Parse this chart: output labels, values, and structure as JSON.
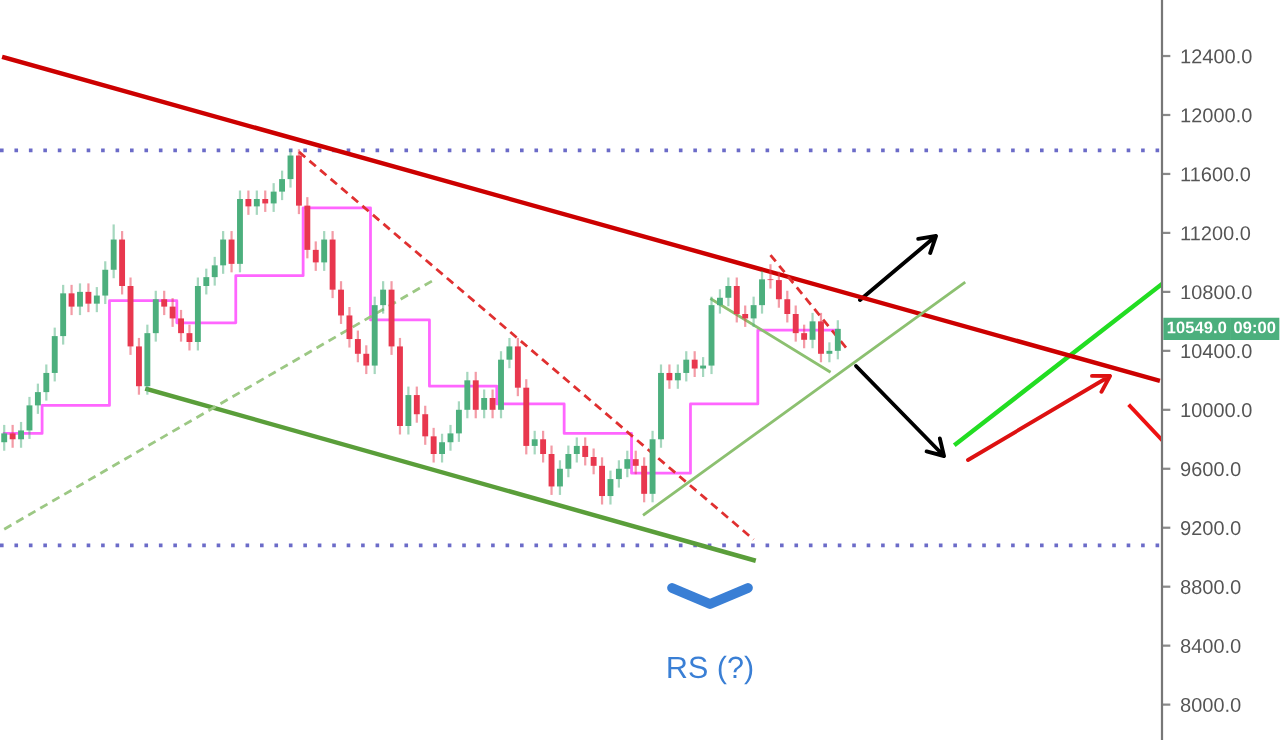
{
  "chart_data": {
    "type": "candlestick",
    "categories": [
      null,
      null,
      null,
      null,
      null,
      null,
      null,
      null,
      null,
      null,
      null,
      null,
      null,
      null,
      null,
      null,
      null,
      null,
      null,
      null,
      null,
      null,
      null,
      null,
      null,
      null,
      null,
      null,
      null,
      null,
      null,
      null,
      null,
      null,
      null,
      null,
      null,
      null,
      null,
      null,
      null,
      null,
      null,
      null,
      null,
      null,
      null,
      null,
      null,
      null,
      null,
      null,
      null,
      null,
      null,
      null,
      null,
      null,
      null,
      null,
      null,
      null,
      null,
      null,
      null,
      null,
      null,
      null,
      null,
      null,
      null,
      null,
      null,
      null,
      null,
      null,
      null,
      null,
      null,
      null,
      null,
      null,
      null,
      null,
      null,
      null,
      null,
      null,
      null,
      null,
      null,
      null,
      null,
      null,
      null,
      null,
      null,
      null,
      null,
      null,
      null,
      null,
      null,
      null,
      null,
      null,
      null,
      null,
      null,
      null,
      null,
      null,
      null,
      null,
      null,
      null,
      null,
      null,
      null,
      null,
      null,
      null,
      null,
      null,
      null,
      null,
      null,
      null,
      null,
      null,
      null,
      null,
      null,
      null,
      null,
      null,
      null,
      null
    ],
    "ohlc": [
      [
        9780,
        9890,
        9730,
        9840
      ],
      [
        9840,
        9890,
        9750,
        9800
      ],
      [
        9800,
        9910,
        9750,
        9860
      ],
      [
        9860,
        10080,
        9810,
        10030
      ],
      [
        10030,
        10170,
        9980,
        10120
      ],
      [
        10120,
        10300,
        10070,
        10250
      ],
      [
        10250,
        10550,
        10200,
        10500
      ],
      [
        10500,
        10840,
        10450,
        10790
      ],
      [
        10790,
        10840,
        10650,
        10700
      ],
      [
        10700,
        10850,
        10650,
        10800
      ],
      [
        10800,
        10850,
        10670,
        10720
      ],
      [
        10720,
        10825,
        10670,
        10775
      ],
      [
        10775,
        11000,
        10725,
        10950
      ],
      [
        10950,
        11250,
        10900,
        11155
      ],
      [
        11155,
        11205,
        10790,
        10840
      ],
      [
        10840,
        10890,
        10380,
        10430
      ],
      [
        10430,
        10480,
        10110,
        10160
      ],
      [
        10160,
        10570,
        10110,
        10520
      ],
      [
        10520,
        10800,
        10470,
        10750
      ],
      [
        10750,
        10800,
        10650,
        10700
      ],
      [
        10700,
        10750,
        10570,
        10620
      ],
      [
        10620,
        10670,
        10470,
        10520
      ],
      [
        10520,
        10570,
        10410,
        10460
      ],
      [
        10460,
        10890,
        10410,
        10840
      ],
      [
        10840,
        10950,
        10790,
        10900
      ],
      [
        10900,
        11030,
        10850,
        10980
      ],
      [
        10980,
        11205,
        10930,
        11155
      ],
      [
        11155,
        11205,
        10940,
        10990
      ],
      [
        10990,
        11480,
        10940,
        11430
      ],
      [
        11430,
        11480,
        11330,
        11380
      ],
      [
        11380,
        11480,
        11330,
        11430
      ],
      [
        11430,
        11480,
        11350,
        11400
      ],
      [
        11400,
        11530,
        11350,
        11480
      ],
      [
        11480,
        11615,
        11430,
        11565
      ],
      [
        11565,
        11760,
        11515,
        11725
      ],
      [
        11725,
        11760,
        11335,
        11385
      ],
      [
        11385,
        11435,
        11035,
        11085
      ],
      [
        11085,
        11135,
        10950,
        11000
      ],
      [
        11000,
        11205,
        10950,
        11155
      ],
      [
        11155,
        11205,
        10765,
        10815
      ],
      [
        10815,
        10865,
        10590,
        10640
      ],
      [
        10640,
        10690,
        10430,
        10480
      ],
      [
        10480,
        10530,
        10330,
        10380
      ],
      [
        10380,
        10430,
        10250,
        10300
      ],
      [
        10300,
        10760,
        10250,
        10710
      ],
      [
        10710,
        10865,
        10660,
        10815
      ],
      [
        10815,
        10865,
        10380,
        10430
      ],
      [
        10430,
        10480,
        9840,
        9890
      ],
      [
        9890,
        10150,
        9840,
        10100
      ],
      [
        10100,
        10150,
        9920,
        9970
      ],
      [
        9970,
        10020,
        9770,
        9820
      ],
      [
        9820,
        9870,
        9650,
        9700
      ],
      [
        9700,
        9830,
        9650,
        9780
      ],
      [
        9780,
        9890,
        9730,
        9840
      ],
      [
        9840,
        10050,
        9790,
        10000
      ],
      [
        10000,
        10250,
        9950,
        10200
      ],
      [
        10200,
        10250,
        9950,
        10000
      ],
      [
        10000,
        10130,
        9950,
        10080
      ],
      [
        10080,
        10130,
        9950,
        10000
      ],
      [
        10000,
        10390,
        9950,
        10340
      ],
      [
        10340,
        10480,
        10290,
        10430
      ],
      [
        10430,
        10480,
        10100,
        10150
      ],
      [
        10150,
        10200,
        9705,
        9755
      ],
      [
        9755,
        9850,
        9705,
        9800
      ],
      [
        9800,
        9850,
        9650,
        9700
      ],
      [
        9700,
        9750,
        9430,
        9480
      ],
      [
        9480,
        9650,
        9430,
        9600
      ],
      [
        9600,
        9750,
        9550,
        9700
      ],
      [
        9700,
        9805,
        9650,
        9755
      ],
      [
        9755,
        9805,
        9630,
        9680
      ],
      [
        9680,
        9730,
        9570,
        9620
      ],
      [
        9620,
        9670,
        9365,
        9415
      ],
      [
        9415,
        9580,
        9365,
        9530
      ],
      [
        9530,
        9650,
        9480,
        9600
      ],
      [
        9600,
        9715,
        9550,
        9665
      ],
      [
        9665,
        9715,
        9570,
        9620
      ],
      [
        9620,
        9670,
        9380,
        9430
      ],
      [
        9430,
        9850,
        9380,
        9800
      ],
      [
        9800,
        10300,
        9750,
        10250
      ],
      [
        10250,
        10300,
        10150,
        10200
      ],
      [
        10200,
        10300,
        10150,
        10250
      ],
      [
        10250,
        10390,
        10200,
        10340
      ],
      [
        10340,
        10390,
        10230,
        10280
      ],
      [
        10280,
        10350,
        10230,
        10300
      ],
      [
        10300,
        10760,
        10250,
        10710
      ],
      [
        10710,
        10810,
        10660,
        10760
      ],
      [
        10760,
        10890,
        10710,
        10840
      ],
      [
        10840,
        10890,
        10600,
        10650
      ],
      [
        10650,
        10700,
        10570,
        10620
      ],
      [
        10620,
        10760,
        10570,
        10710
      ],
      [
        10710,
        10935,
        10660,
        10885
      ],
      [
        10885,
        10980,
        10830,
        10880
      ],
      [
        10880,
        10930,
        10700,
        10750
      ],
      [
        10750,
        10800,
        10600,
        10650
      ],
      [
        10650,
        10700,
        10470,
        10520
      ],
      [
        10520,
        10570,
        10425,
        10475
      ],
      [
        10475,
        10650,
        10425,
        10600
      ],
      [
        10600,
        10650,
        10330,
        10380
      ],
      [
        10380,
        10450,
        10330,
        10400
      ],
      [
        10400,
        10600,
        10350,
        10549
      ],
      null,
      null,
      null,
      null,
      null,
      null,
      null,
      null,
      null,
      null,
      null,
      null,
      null,
      null,
      null,
      null,
      null,
      null,
      null,
      null,
      null,
      null,
      null,
      null,
      null,
      null,
      null,
      null,
      null,
      null,
      null,
      null,
      null,
      null,
      null,
      null,
      null,
      null
    ],
    "series": [
      {
        "type": "step",
        "color": "#ff66ff",
        "values": [
          9840,
          9840,
          9840,
          9840,
          9840,
          10030,
          10030,
          10030,
          10030,
          10030,
          10030,
          10030,
          10030,
          10740,
          10740,
          10740,
          10740,
          10740,
          10740,
          10740,
          10740,
          10590,
          10590,
          10590,
          10590,
          10590,
          10590,
          10590,
          10910,
          10910,
          10910,
          10910,
          10910,
          10910,
          10910,
          10910,
          11370,
          11370,
          11370,
          11370,
          11370,
          11370,
          11370,
          11370,
          10610,
          10610,
          10610,
          10610,
          10610,
          10610,
          10610,
          10160,
          10160,
          10160,
          10160,
          10160,
          10160,
          10160,
          10160,
          10040,
          10040,
          10040,
          10040,
          10040,
          10040,
          10040,
          10040,
          9840,
          9840,
          9840,
          9840,
          9840,
          9840,
          9840,
          9840,
          9570,
          9570,
          9570,
          9570,
          9570,
          9570,
          9570,
          10040,
          10040,
          10040,
          10040,
          10040,
          10040,
          10040,
          10040,
          10540,
          10540,
          10540,
          10540,
          10540,
          10540,
          10540,
          10540,
          10540,
          10540,
          null,
          null,
          null,
          null,
          null,
          null,
          null,
          null,
          null,
          null,
          null,
          null,
          null,
          null,
          null,
          null,
          null,
          null,
          null,
          null,
          null,
          null,
          null,
          null,
          null,
          null,
          null,
          null,
          null,
          null,
          null,
          null,
          null,
          null,
          null,
          null,
          null,
          null
        ]
      },
      {
        "type": "line",
        "color": "#cc0000",
        "line_style": "solid",
        "values": [
          12390,
          null,
          null,
          null,
          null,
          null,
          null,
          null,
          null,
          null,
          null,
          null,
          null,
          null,
          null,
          null,
          null,
          null,
          null,
          null,
          null,
          null,
          null,
          null,
          null,
          null,
          null,
          null,
          null,
          null,
          null,
          null,
          null,
          null,
          null,
          null,
          null,
          null,
          null,
          null,
          null,
          null,
          null,
          null,
          null,
          null,
          null,
          null,
          null,
          null,
          null,
          null,
          null,
          null,
          null,
          null,
          null,
          null,
          null,
          null,
          null,
          null,
          null,
          null,
          null,
          null,
          null,
          null,
          null,
          null,
          null,
          null,
          null,
          null,
          null,
          null,
          null,
          null,
          null,
          null,
          null,
          null,
          null,
          null,
          null,
          null,
          null,
          null,
          null,
          null,
          null,
          null,
          null,
          null,
          null,
          null,
          null,
          null,
          null,
          null,
          null,
          null,
          null,
          null,
          null,
          null,
          null,
          null,
          null,
          null,
          null,
          null,
          null,
          null,
          null,
          null,
          null,
          null,
          null,
          null,
          null,
          null,
          null,
          null,
          null,
          null,
          null,
          null,
          null,
          null,
          null,
          null,
          null,
          null,
          null,
          null,
          null,
          10200
        ]
      },
      {
        "type": "line",
        "color": "#5a9e3a",
        "line_style": "solid",
        "values": [
          null,
          null,
          null,
          null,
          null,
          null,
          null,
          null,
          null,
          null,
          null,
          null,
          null,
          null,
          null,
          null,
          null,
          10140,
          null,
          null,
          null,
          null,
          null,
          null,
          null,
          null,
          null,
          null,
          null,
          null,
          null,
          null,
          null,
          null,
          null,
          null,
          null,
          null,
          null,
          null,
          null,
          null,
          null,
          null,
          null,
          null,
          null,
          null,
          null,
          null,
          null,
          null,
          null,
          null,
          null,
          null,
          null,
          null,
          null,
          null,
          null,
          null,
          null,
          null,
          null,
          null,
          null,
          null,
          null,
          null,
          null,
          null,
          null,
          null,
          null,
          null,
          null,
          null,
          null,
          null,
          null,
          null,
          null,
          null,
          null,
          null,
          null,
          null,
          null,
          8980,
          null,
          null,
          null,
          null,
          null,
          null,
          null,
          null,
          null,
          null,
          null,
          null,
          null,
          null,
          null,
          null,
          null,
          null,
          null,
          null,
          null,
          null,
          null,
          null,
          null,
          null,
          null,
          null,
          null,
          null,
          null,
          null,
          null,
          null,
          null,
          null,
          null,
          null,
          null,
          null,
          null,
          null,
          null,
          null,
          null,
          null,
          null,
          null
        ]
      },
      {
        "type": "line",
        "color": "#9cc884",
        "line_style": "dashed",
        "values": [
          9190,
          null,
          null,
          null,
          null,
          null,
          null,
          null,
          null,
          null,
          null,
          null,
          null,
          null,
          null,
          null,
          null,
          null,
          null,
          null,
          null,
          null,
          null,
          null,
          null,
          null,
          null,
          null,
          null,
          null,
          null,
          null,
          null,
          null,
          null,
          null,
          null,
          null,
          null,
          null,
          null,
          null,
          null,
          null,
          null,
          null,
          null,
          null,
          null,
          null,
          null,
          10880,
          null,
          null,
          null,
          null,
          null,
          null,
          null,
          null,
          null,
          null,
          null,
          null,
          null,
          null,
          null,
          null,
          null,
          null,
          null,
          null,
          null,
          null,
          null,
          null,
          null,
          null,
          null,
          null,
          null,
          null,
          null,
          null,
          null,
          null,
          null,
          null,
          null,
          null,
          null,
          null,
          null,
          null,
          null,
          null,
          null,
          null,
          null,
          null,
          null,
          null,
          null,
          null,
          null,
          null,
          null,
          null,
          null,
          null,
          null,
          null,
          null,
          null,
          null,
          null,
          null,
          null,
          null,
          null,
          null,
          null,
          null,
          null,
          null,
          null,
          null,
          null,
          null,
          null,
          null,
          null,
          null,
          null,
          null,
          null,
          null,
          null
        ]
      },
      {
        "type": "line",
        "color": "#e03030",
        "line_style": "dashed",
        "values": [
          null,
          null,
          null,
          null,
          null,
          null,
          null,
          null,
          null,
          null,
          null,
          null,
          null,
          null,
          null,
          null,
          null,
          null,
          null,
          null,
          null,
          null,
          null,
          null,
          null,
          null,
          null,
          null,
          null,
          null,
          null,
          null,
          null,
          null,
          null,
          11750,
          null,
          null,
          null,
          null,
          null,
          null,
          null,
          null,
          null,
          null,
          null,
          null,
          null,
          null,
          null,
          null,
          null,
          null,
          null,
          null,
          null,
          null,
          null,
          null,
          null,
          null,
          null,
          null,
          null,
          null,
          null,
          null,
          null,
          null,
          null,
          null,
          null,
          null,
          null,
          null,
          null,
          null,
          null,
          null,
          null,
          null,
          null,
          null,
          null,
          null,
          null,
          null,
          null,
          9120,
          null,
          null,
          null,
          null,
          null,
          null,
          null,
          null,
          null,
          null,
          null,
          null,
          null,
          null,
          null,
          null,
          null,
          null,
          null,
          null,
          null,
          null,
          null,
          null,
          null,
          null,
          null,
          null,
          null,
          null,
          null,
          null,
          null,
          null,
          null,
          null,
          null,
          null,
          null,
          null,
          null,
          null,
          null,
          null,
          null,
          null,
          null,
          null
        ]
      },
      {
        "type": "line",
        "color": "#8cc070",
        "line_style": "solid",
        "values": [
          null,
          null,
          null,
          null,
          null,
          null,
          null,
          null,
          null,
          null,
          null,
          null,
          null,
          null,
          null,
          null,
          null,
          null,
          null,
          null,
          null,
          null,
          null,
          null,
          null,
          null,
          null,
          null,
          null,
          null,
          null,
          null,
          null,
          null,
          null,
          null,
          null,
          null,
          null,
          null,
          null,
          null,
          null,
          null,
          null,
          null,
          null,
          null,
          null,
          null,
          null,
          null,
          null,
          null,
          null,
          null,
          null,
          null,
          null,
          null,
          null,
          null,
          null,
          null,
          null,
          null,
          null,
          null,
          null,
          null,
          null,
          null,
          null,
          null,
          null,
          null,
          9290,
          null,
          null,
          null,
          null,
          null,
          null,
          null,
          null,
          null,
          null,
          null,
          null,
          null,
          null,
          null,
          null,
          null,
          null,
          null,
          null,
          null,
          null,
          null,
          null,
          null,
          null,
          null,
          null,
          null,
          null,
          null,
          null,
          null,
          null,
          null,
          null,
          null,
          10860,
          null,
          null,
          null,
          null,
          null,
          null,
          null,
          null,
          null,
          null,
          null,
          null,
          null,
          null,
          null,
          null,
          null,
          null,
          null,
          null,
          null,
          null,
          null
        ]
      },
      {
        "type": "line",
        "color": "#8cc070",
        "line_style": "solid",
        "values": [
          null,
          null,
          null,
          null,
          null,
          null,
          null,
          null,
          null,
          null,
          null,
          null,
          null,
          null,
          null,
          null,
          null,
          null,
          null,
          null,
          null,
          null,
          null,
          null,
          null,
          null,
          null,
          null,
          null,
          null,
          null,
          null,
          null,
          null,
          null,
          null,
          null,
          null,
          null,
          null,
          null,
          null,
          null,
          null,
          null,
          null,
          null,
          null,
          null,
          null,
          null,
          null,
          null,
          null,
          null,
          null,
          null,
          null,
          null,
          null,
          null,
          null,
          null,
          null,
          null,
          null,
          null,
          null,
          null,
          null,
          null,
          null,
          null,
          null,
          null,
          null,
          null,
          null,
          null,
          null,
          null,
          null,
          null,
          null,
          10750,
          null,
          null,
          null,
          null,
          null,
          null,
          null,
          null,
          null,
          null,
          null,
          null,
          null,
          10260,
          null,
          null,
          null,
          null,
          null,
          null,
          null,
          null,
          null,
          null,
          null,
          null,
          null,
          null,
          null,
          null,
          null,
          null,
          null,
          null,
          null,
          null,
          null,
          null,
          null,
          null,
          null,
          null,
          null,
          null,
          null,
          null,
          null,
          null,
          null,
          null,
          null,
          null,
          null
        ]
      },
      {
        "type": "line",
        "color": "#e03030",
        "line_style": "dashed",
        "values": [
          null,
          null,
          null,
          null,
          null,
          null,
          null,
          null,
          null,
          null,
          null,
          null,
          null,
          null,
          null,
          null,
          null,
          null,
          null,
          null,
          null,
          null,
          null,
          null,
          null,
          null,
          null,
          null,
          null,
          null,
          null,
          null,
          null,
          null,
          null,
          null,
          null,
          null,
          null,
          null,
          null,
          null,
          null,
          null,
          null,
          null,
          null,
          null,
          null,
          null,
          null,
          null,
          null,
          null,
          null,
          null,
          null,
          null,
          null,
          null,
          null,
          null,
          null,
          null,
          null,
          null,
          null,
          null,
          null,
          null,
          null,
          null,
          null,
          null,
          null,
          null,
          null,
          null,
          null,
          null,
          null,
          null,
          null,
          null,
          null,
          null,
          null,
          null,
          null,
          null,
          null,
          11050,
          null,
          null,
          null,
          null,
          null,
          null,
          null,
          null,
          10420,
          null,
          null,
          null,
          null,
          null,
          null,
          null,
          null,
          null,
          null,
          null,
          null,
          null,
          null,
          null,
          null,
          null,
          null,
          null,
          null,
          null,
          null,
          null,
          null,
          null,
          null,
          null,
          null,
          null,
          null,
          null,
          null,
          null,
          null,
          null,
          null,
          null
        ]
      }
    ],
    "ylim": [
      7760,
      12780
    ],
    "yticks": [
      {
        "value": 8000,
        "label": "8000.0"
      },
      {
        "value": 8400,
        "label": "8400.0"
      },
      {
        "value": 8800,
        "label": "8800.0"
      },
      {
        "value": 9200,
        "label": "9200.0"
      },
      {
        "value": 9600,
        "label": "9600.0"
      },
      {
        "value": 10000,
        "label": "10000.0"
      },
      {
        "value": 10400,
        "label": "10400.0"
      },
      {
        "value": 10800,
        "label": "10800.0"
      },
      {
        "value": 11200,
        "label": "11200.0"
      },
      {
        "value": 11600,
        "label": "11600.0"
      },
      {
        "value": 12000,
        "label": "12000.0"
      },
      {
        "value": 12400,
        "label": "12400.0"
      }
    ],
    "tick_labels": "y",
    "grid": false,
    "legend": false,
    "ref_lines": [
      {
        "axis": "y",
        "value": 11760,
        "color": "#6b6bc8",
        "line_style": "dotted"
      },
      {
        "axis": "y",
        "value": 9080,
        "color": "#6b6bc8",
        "line_style": "dotted"
      }
    ],
    "annotations": [
      "10549.0",
      "09:00",
      "RS (?)"
    ]
  }
}
